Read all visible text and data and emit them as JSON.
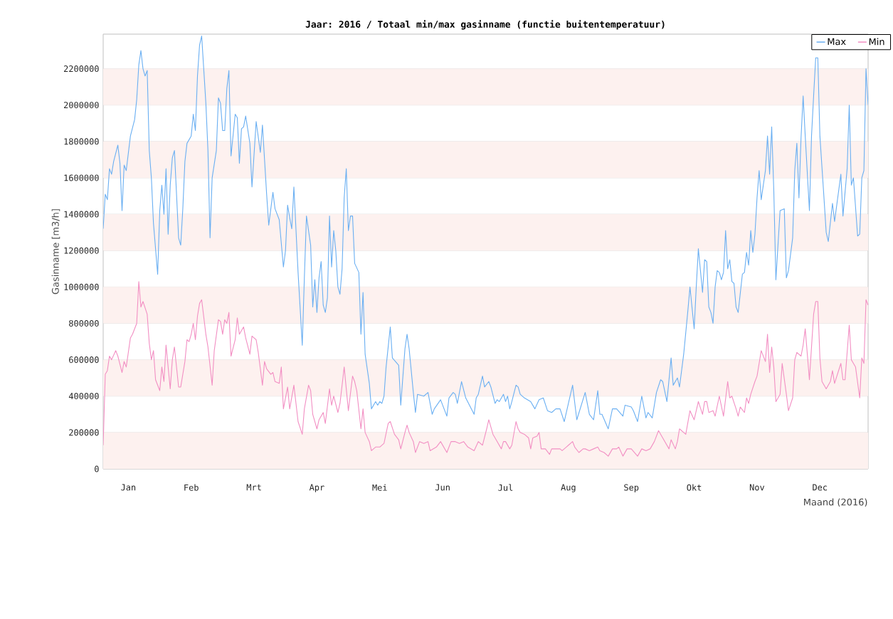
{
  "chart_data": {
    "type": "line",
    "title": "Jaar: 2016 / Totaal min/max gasinname (functie buitentemperatuur)",
    "xlabel": "Maand (2016)",
    "ylabel": "Gasinname [m3/h]",
    "xlim": [
      "2016-01-01",
      "2016-12-31"
    ],
    "xticks": [
      {
        "value": "2016-01-13",
        "label": "Jan"
      },
      {
        "value": "2016-02-12",
        "label": "Feb"
      },
      {
        "value": "2016-03-13",
        "label": "Mrt"
      },
      {
        "value": "2016-04-12",
        "label": "Apr"
      },
      {
        "value": "2016-05-12",
        "label": "Mei"
      },
      {
        "value": "2016-06-11",
        "label": "Jun"
      },
      {
        "value": "2016-07-11",
        "label": "Jul"
      },
      {
        "value": "2016-08-10",
        "label": "Aug"
      },
      {
        "value": "2016-09-09",
        "label": "Sep"
      },
      {
        "value": "2016-10-09",
        "label": "Okt"
      },
      {
        "value": "2016-11-08",
        "label": "Nov"
      },
      {
        "value": "2016-12-08",
        "label": "Dec"
      }
    ],
    "ylim": [
      0,
      2390000
    ],
    "yticks": [
      0,
      200000,
      400000,
      600000,
      800000,
      1000000,
      1200000,
      1400000,
      1600000,
      1800000,
      2000000,
      2200000
    ],
    "grid": "y",
    "legend": "top right",
    "series": [
      {
        "name": "Max",
        "color": "#6aaff2",
        "x": [
          "2016-01-01",
          "2016-01-02",
          "2016-01-03",
          "2016-01-04",
          "2016-01-05",
          "2016-01-06",
          "2016-01-08",
          "2016-01-09",
          "2016-01-10",
          "2016-01-11",
          "2016-01-12",
          "2016-01-14",
          "2016-01-16",
          "2016-01-17",
          "2016-01-18",
          "2016-01-19",
          "2016-01-20",
          "2016-01-21",
          "2016-01-22",
          "2016-01-23",
          "2016-01-24",
          "2016-01-25",
          "2016-01-27",
          "2016-01-28",
          "2016-01-29",
          "2016-01-30",
          "2016-01-31",
          "2016-02-01",
          "2016-02-02",
          "2016-02-03",
          "2016-02-04",
          "2016-02-05",
          "2016-02-06",
          "2016-02-07",
          "2016-02-08",
          "2016-02-09",
          "2016-02-10",
          "2016-02-12",
          "2016-02-13",
          "2016-02-14",
          "2016-02-15",
          "2016-02-16",
          "2016-02-17",
          "2016-02-19",
          "2016-02-20",
          "2016-02-21",
          "2016-02-22",
          "2016-02-24",
          "2016-02-25",
          "2016-02-26",
          "2016-02-27",
          "2016-02-28",
          "2016-02-29",
          "2016-03-01",
          "2016-03-02",
          "2016-03-04",
          "2016-03-05",
          "2016-03-06",
          "2016-03-07",
          "2016-03-08",
          "2016-03-09",
          "2016-03-11",
          "2016-03-12",
          "2016-03-14",
          "2016-03-16",
          "2016-03-17",
          "2016-03-19",
          "2016-03-20",
          "2016-03-22",
          "2016-03-23",
          "2016-03-25",
          "2016-03-27",
          "2016-03-28",
          "2016-03-29",
          "2016-03-30",
          "2016-03-31",
          "2016-04-01",
          "2016-04-03",
          "2016-04-05",
          "2016-04-06",
          "2016-04-07",
          "2016-04-09",
          "2016-04-10",
          "2016-04-11",
          "2016-04-12",
          "2016-04-13",
          "2016-04-14",
          "2016-04-15",
          "2016-04-16",
          "2016-04-17",
          "2016-04-18",
          "2016-04-19",
          "2016-04-20",
          "2016-04-21",
          "2016-04-22",
          "2016-04-23",
          "2016-04-24",
          "2016-04-25",
          "2016-04-26",
          "2016-04-27",
          "2016-04-28",
          "2016-04-29",
          "2016-04-30",
          "2016-05-02",
          "2016-05-03",
          "2016-05-04",
          "2016-05-05",
          "2016-05-07",
          "2016-05-08",
          "2016-05-10",
          "2016-05-11",
          "2016-05-12",
          "2016-05-13",
          "2016-05-14",
          "2016-05-15",
          "2016-05-17",
          "2016-05-18",
          "2016-05-21",
          "2016-05-22",
          "2016-05-24",
          "2016-05-25",
          "2016-05-26",
          "2016-05-28",
          "2016-05-29",
          "2016-05-30",
          "2016-06-02",
          "2016-06-04",
          "2016-06-06",
          "2016-06-07",
          "2016-06-10",
          "2016-06-13",
          "2016-06-14",
          "2016-06-16",
          "2016-06-17",
          "2016-06-18",
          "2016-06-20",
          "2016-06-22",
          "2016-06-26",
          "2016-06-27",
          "2016-06-28",
          "2016-06-30",
          "2016-07-01",
          "2016-07-03",
          "2016-07-04",
          "2016-07-06",
          "2016-07-07",
          "2016-07-08",
          "2016-07-10",
          "2016-07-11",
          "2016-07-12",
          "2016-07-13",
          "2016-07-14",
          "2016-07-16",
          "2016-07-17",
          "2016-07-18",
          "2016-07-20",
          "2016-07-23",
          "2016-07-25",
          "2016-07-27",
          "2016-07-29",
          "2016-07-31",
          "2016-08-02",
          "2016-08-04",
          "2016-08-06",
          "2016-08-08",
          "2016-08-10",
          "2016-08-12",
          "2016-08-14",
          "2016-08-18",
          "2016-08-20",
          "2016-08-22",
          "2016-08-24",
          "2016-08-25",
          "2016-08-26",
          "2016-08-29",
          "2016-08-31",
          "2016-09-02",
          "2016-09-05",
          "2016-09-06",
          "2016-09-09",
          "2016-09-10",
          "2016-09-12",
          "2016-09-14",
          "2016-09-16",
          "2016-09-17",
          "2016-09-19",
          "2016-09-21",
          "2016-09-23",
          "2016-09-24",
          "2016-09-26",
          "2016-09-28",
          "2016-09-29",
          "2016-10-01",
          "2016-10-02",
          "2016-10-04",
          "2016-10-06",
          "2016-10-07",
          "2016-10-09",
          "2016-10-10",
          "2016-10-11",
          "2016-10-13",
          "2016-10-14",
          "2016-10-15",
          "2016-10-16",
          "2016-10-17",
          "2016-10-18",
          "2016-10-19",
          "2016-10-20",
          "2016-10-21",
          "2016-10-22",
          "2016-10-23",
          "2016-10-24",
          "2016-10-25",
          "2016-10-26",
          "2016-10-27",
          "2016-10-28",
          "2016-10-29",
          "2016-10-30",
          "2016-11-01",
          "2016-11-02",
          "2016-11-03",
          "2016-11-04",
          "2016-11-05",
          "2016-11-06",
          "2016-11-07",
          "2016-11-08",
          "2016-11-09",
          "2016-11-10",
          "2016-11-12",
          "2016-11-13",
          "2016-11-14",
          "2016-11-15",
          "2016-11-16",
          "2016-11-17",
          "2016-11-19",
          "2016-11-21",
          "2016-11-22",
          "2016-11-23",
          "2016-11-25",
          "2016-11-26",
          "2016-11-27",
          "2016-11-28",
          "2016-11-29",
          "2016-11-30",
          "2016-12-01",
          "2016-12-03",
          "2016-12-04",
          "2016-12-05",
          "2016-12-06",
          "2016-12-07",
          "2016-12-08",
          "2016-12-10",
          "2016-12-11",
          "2016-12-12",
          "2016-12-14",
          "2016-12-15",
          "2016-12-18",
          "2016-12-19",
          "2016-12-21",
          "2016-12-22",
          "2016-12-23",
          "2016-12-24",
          "2016-12-26",
          "2016-12-27",
          "2016-12-28",
          "2016-12-29",
          "2016-12-30",
          "2016-12-31"
        ],
        "values": [
          1320000,
          1510000,
          1480000,
          1650000,
          1620000,
          1690000,
          1780000,
          1680000,
          1420000,
          1670000,
          1640000,
          1830000,
          1920000,
          2030000,
          2220000,
          2300000,
          2200000,
          2160000,
          2190000,
          1750000,
          1600000,
          1350000,
          1070000,
          1420000,
          1560000,
          1400000,
          1650000,
          1290000,
          1560000,
          1710000,
          1750000,
          1510000,
          1270000,
          1230000,
          1430000,
          1690000,
          1790000,
          1830000,
          1950000,
          1860000,
          2160000,
          2330000,
          2380000,
          2010000,
          1750000,
          1270000,
          1600000,
          1750000,
          2040000,
          2010000,
          1860000,
          1860000,
          2090000,
          2190000,
          1720000,
          1950000,
          1930000,
          1680000,
          1870000,
          1880000,
          1940000,
          1790000,
          1550000,
          1910000,
          1740000,
          1890000,
          1510000,
          1340000,
          1520000,
          1430000,
          1370000,
          1110000,
          1200000,
          1450000,
          1380000,
          1320000,
          1550000,
          1080000,
          680000,
          1050000,
          1390000,
          1230000,
          890000,
          1040000,
          860000,
          1050000,
          1140000,
          900000,
          860000,
          940000,
          1390000,
          1110000,
          1310000,
          1200000,
          1000000,
          960000,
          1100000,
          1490000,
          1650000,
          1310000,
          1390000,
          1390000,
          1130000,
          1080000,
          740000,
          970000,
          630000,
          470000,
          330000,
          370000,
          350000,
          370000,
          360000,
          400000,
          560000,
          780000,
          610000,
          570000,
          350000,
          660000,
          740000,
          660000,
          420000,
          310000,
          410000,
          400000,
          420000,
          300000,
          330000,
          380000,
          290000,
          390000,
          420000,
          410000,
          360000,
          480000,
          390000,
          300000,
          390000,
          410000,
          510000,
          450000,
          480000,
          450000,
          360000,
          380000,
          370000,
          410000,
          370000,
          400000,
          330000,
          370000,
          460000,
          450000,
          410000,
          390000,
          370000,
          330000,
          380000,
          390000,
          320000,
          310000,
          330000,
          330000,
          260000,
          360000,
          460000,
          270000,
          420000,
          300000,
          270000,
          430000,
          300000,
          300000,
          220000,
          330000,
          330000,
          290000,
          350000,
          340000,
          320000,
          260000,
          400000,
          280000,
          310000,
          280000,
          420000,
          490000,
          480000,
          370000,
          610000,
          460000,
          500000,
          450000,
          630000,
          870000,
          1000000,
          770000,
          1000000,
          1210000,
          970000,
          1150000,
          1140000,
          890000,
          860000,
          800000,
          1000000,
          1090000,
          1080000,
          1040000,
          1080000,
          1310000,
          1100000,
          1150000,
          1030000,
          1020000,
          890000,
          860000,
          1070000,
          1080000,
          1190000,
          1120000,
          1310000,
          1190000,
          1290000,
          1490000,
          1640000,
          1480000,
          1640000,
          1830000,
          1620000,
          1880000,
          1530000,
          1040000,
          1420000,
          1430000,
          1050000,
          1090000,
          1270000,
          1640000,
          1790000,
          1490000,
          1820000,
          2050000,
          1830000,
          1420000,
          1830000,
          2050000,
          2260000,
          2260000,
          1830000,
          1480000,
          1300000,
          1250000,
          1460000,
          1360000,
          1620000,
          1390000,
          1650000,
          2000000,
          1560000,
          1600000,
          1280000,
          1290000,
          1600000,
          1640000,
          2200000,
          2000000
        ]
      },
      {
        "name": "Min",
        "color": "#f28fc3",
        "x": [
          "2016-01-01",
          "2016-01-02",
          "2016-01-03",
          "2016-01-04",
          "2016-01-05",
          "2016-01-07",
          "2016-01-08",
          "2016-01-10",
          "2016-01-11",
          "2016-01-12",
          "2016-01-14",
          "2016-01-15",
          "2016-01-17",
          "2016-01-18",
          "2016-01-19",
          "2016-01-20",
          "2016-01-22",
          "2016-01-23",
          "2016-01-24",
          "2016-01-25",
          "2016-01-26",
          "2016-01-28",
          "2016-01-29",
          "2016-01-30",
          "2016-01-31",
          "2016-02-02",
          "2016-02-03",
          "2016-02-04",
          "2016-02-05",
          "2016-02-06",
          "2016-02-07",
          "2016-02-09",
          "2016-02-10",
          "2016-02-11",
          "2016-02-12",
          "2016-02-13",
          "2016-02-14",
          "2016-02-15",
          "2016-02-16",
          "2016-02-17",
          "2016-02-19",
          "2016-02-20",
          "2016-02-22",
          "2016-02-23",
          "2016-02-25",
          "2016-02-26",
          "2016-02-27",
          "2016-02-28",
          "2016-02-29",
          "2016-03-01",
          "2016-03-02",
          "2016-03-04",
          "2016-03-05",
          "2016-03-06",
          "2016-03-08",
          "2016-03-09",
          "2016-03-11",
          "2016-03-12",
          "2016-03-14",
          "2016-03-15",
          "2016-03-17",
          "2016-03-18",
          "2016-03-19",
          "2016-03-21",
          "2016-03-22",
          "2016-03-23",
          "2016-03-25",
          "2016-03-26",
          "2016-03-27",
          "2016-03-29",
          "2016-03-30",
          "2016-04-01",
          "2016-04-03",
          "2016-04-05",
          "2016-04-06",
          "2016-04-08",
          "2016-04-09",
          "2016-04-10",
          "2016-04-12",
          "2016-04-13",
          "2016-04-15",
          "2016-04-16",
          "2016-04-18",
          "2016-04-19",
          "2016-04-20",
          "2016-04-22",
          "2016-04-23",
          "2016-04-25",
          "2016-04-27",
          "2016-04-29",
          "2016-04-30",
          "2016-05-01",
          "2016-05-03",
          "2016-05-04",
          "2016-05-05",
          "2016-05-07",
          "2016-05-08",
          "2016-05-10",
          "2016-05-12",
          "2016-05-14",
          "2016-05-16",
          "2016-05-17",
          "2016-05-19",
          "2016-05-21",
          "2016-05-22",
          "2016-05-24",
          "2016-05-25",
          "2016-05-26",
          "2016-05-28",
          "2016-05-29",
          "2016-05-31",
          "2016-06-02",
          "2016-06-04",
          "2016-06-05",
          "2016-06-08",
          "2016-06-10",
          "2016-06-13",
          "2016-06-15",
          "2016-06-17",
          "2016-06-19",
          "2016-06-21",
          "2016-06-23",
          "2016-06-26",
          "2016-06-28",
          "2016-06-30",
          "2016-07-02",
          "2016-07-03",
          "2016-07-05",
          "2016-07-06",
          "2016-07-09",
          "2016-07-10",
          "2016-07-11",
          "2016-07-13",
          "2016-07-14",
          "2016-07-16",
          "2016-07-17",
          "2016-07-18",
          "2016-07-20",
          "2016-07-22",
          "2016-07-23",
          "2016-07-24",
          "2016-07-26",
          "2016-07-27",
          "2016-07-28",
          "2016-07-30",
          "2016-08-01",
          "2016-08-02",
          "2016-08-04",
          "2016-08-06",
          "2016-08-07",
          "2016-08-09",
          "2016-08-10",
          "2016-08-12",
          "2016-08-13",
          "2016-08-15",
          "2016-08-17",
          "2016-08-18",
          "2016-08-20",
          "2016-08-22",
          "2016-08-24",
          "2016-08-25",
          "2016-08-27",
          "2016-08-29",
          "2016-08-31",
          "2016-09-02",
          "2016-09-03",
          "2016-09-05",
          "2016-09-07",
          "2016-09-09",
          "2016-09-12",
          "2016-09-14",
          "2016-09-16",
          "2016-09-18",
          "2016-09-20",
          "2016-09-22",
          "2016-09-24",
          "2016-09-27",
          "2016-09-28",
          "2016-09-30",
          "2016-10-01",
          "2016-10-02",
          "2016-10-05",
          "2016-10-07",
          "2016-10-09",
          "2016-10-11",
          "2016-10-13",
          "2016-10-14",
          "2016-10-15",
          "2016-10-16",
          "2016-10-18",
          "2016-10-19",
          "2016-10-21",
          "2016-10-23",
          "2016-10-25",
          "2016-10-26",
          "2016-10-27",
          "2016-10-29",
          "2016-10-30",
          "2016-10-31",
          "2016-11-02",
          "2016-11-03",
          "2016-11-04",
          "2016-11-05",
          "2016-11-07",
          "2016-11-08",
          "2016-11-10",
          "2016-11-12",
          "2016-11-13",
          "2016-11-14",
          "2016-11-15",
          "2016-11-16",
          "2016-11-17",
          "2016-11-19",
          "2016-11-20",
          "2016-11-22",
          "2016-11-23",
          "2016-11-25",
          "2016-11-26",
          "2016-11-27",
          "2016-11-29",
          "2016-11-30",
          "2016-12-01",
          "2016-12-03",
          "2016-12-05",
          "2016-12-06",
          "2016-12-07",
          "2016-12-08",
          "2016-12-09",
          "2016-12-11",
          "2016-12-13",
          "2016-12-14",
          "2016-12-15",
          "2016-12-18",
          "2016-12-19",
          "2016-12-20",
          "2016-12-22",
          "2016-12-23",
          "2016-12-25",
          "2016-12-27",
          "2016-12-28",
          "2016-12-29",
          "2016-12-30",
          "2016-12-31"
        ],
        "values": [
          130000,
          520000,
          540000,
          620000,
          600000,
          650000,
          620000,
          530000,
          590000,
          560000,
          720000,
          740000,
          800000,
          1030000,
          890000,
          920000,
          850000,
          690000,
          600000,
          650000,
          490000,
          430000,
          560000,
          480000,
          680000,
          440000,
          600000,
          670000,
          560000,
          450000,
          450000,
          590000,
          710000,
          700000,
          740000,
          800000,
          710000,
          840000,
          910000,
          930000,
          740000,
          670000,
          460000,
          650000,
          820000,
          810000,
          740000,
          820000,
          800000,
          860000,
          620000,
          710000,
          830000,
          740000,
          780000,
          720000,
          630000,
          730000,
          710000,
          640000,
          460000,
          590000,
          550000,
          520000,
          530000,
          480000,
          470000,
          560000,
          330000,
          450000,
          330000,
          460000,
          260000,
          190000,
          330000,
          460000,
          430000,
          300000,
          220000,
          270000,
          310000,
          250000,
          440000,
          350000,
          400000,
          310000,
          360000,
          560000,
          320000,
          510000,
          480000,
          430000,
          220000,
          330000,
          200000,
          150000,
          100000,
          120000,
          120000,
          140000,
          250000,
          260000,
          190000,
          160000,
          110000,
          200000,
          240000,
          200000,
          150000,
          90000,
          150000,
          140000,
          150000,
          100000,
          120000,
          150000,
          90000,
          150000,
          150000,
          140000,
          150000,
          120000,
          100000,
          150000,
          130000,
          220000,
          270000,
          190000,
          170000,
          110000,
          150000,
          150000,
          110000,
          130000,
          260000,
          220000,
          200000,
          190000,
          170000,
          110000,
          170000,
          180000,
          200000,
          110000,
          110000,
          80000,
          110000,
          110000,
          110000,
          100000,
          120000,
          130000,
          150000,
          120000,
          90000,
          110000,
          110000,
          100000,
          110000,
          120000,
          100000,
          90000,
          70000,
          110000,
          110000,
          120000,
          70000,
          110000,
          110000,
          70000,
          110000,
          100000,
          110000,
          150000,
          210000,
          170000,
          110000,
          160000,
          110000,
          150000,
          220000,
          190000,
          320000,
          270000,
          370000,
          300000,
          370000,
          370000,
          310000,
          320000,
          290000,
          400000,
          290000,
          480000,
          390000,
          400000,
          330000,
          290000,
          340000,
          310000,
          390000,
          360000,
          410000,
          480000,
          510000,
          650000,
          590000,
          740000,
          530000,
          670000,
          560000,
          370000,
          410000,
          580000,
          410000,
          320000,
          390000,
          600000,
          640000,
          620000,
          680000,
          770000,
          490000,
          850000,
          920000,
          920000,
          610000,
          480000,
          440000,
          480000,
          540000,
          470000,
          580000,
          490000,
          490000,
          790000,
          600000,
          560000,
          390000,
          610000,
          580000,
          930000,
          900000
        ]
      }
    ]
  }
}
